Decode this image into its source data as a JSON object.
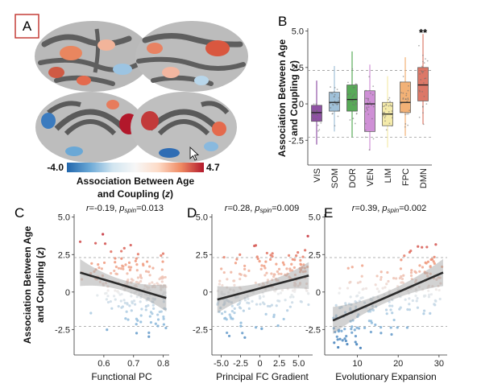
{
  "panel_labels": [
    "A",
    "B",
    "C",
    "D",
    "E"
  ],
  "colorbar": {
    "min_label": "-4.0",
    "max_label": "4.7",
    "label_line1": "Association Between Age",
    "label_line2": "and Coupling (z)",
    "colors": [
      "#2166ac",
      "#6aa8d6",
      "#d1e5f0",
      "#f7f7f7",
      "#fddbc7",
      "#ef8a62",
      "#b2182b"
    ]
  },
  "chart_data": [
    {
      "id": "B",
      "type": "box",
      "ylabel_line1": "Association Between Age",
      "ylabel_line2": "and Coupling (z)",
      "ylim": [
        -4.2,
        5.2
      ],
      "yticks": [
        "5.0",
        "2.5",
        "0",
        "-2.5"
      ],
      "ytick_values": [
        5.0,
        2.5,
        0,
        -2.5
      ],
      "reference_lines": [
        2.3,
        -2.3
      ],
      "categories": [
        "VIS",
        "SOM",
        "DOR",
        "VEN",
        "LIM",
        "FPC",
        "DMN"
      ],
      "colors": [
        "#7b3294",
        "#8fb6d2",
        "#3a9b3a",
        "#c77ccf",
        "#f3e79b",
        "#f0a35e",
        "#d6604d"
      ],
      "q1": [
        -1.2,
        -0.5,
        -0.5,
        -1.9,
        -1.5,
        -0.6,
        0.2
      ],
      "median": [
        -0.6,
        0.1,
        0.3,
        0.0,
        -0.7,
        0.1,
        1.3
      ],
      "q3": [
        -0.1,
        0.8,
        1.3,
        0.9,
        0.1,
        1.5,
        2.5
      ],
      "whisker_low": [
        -2.8,
        -1.9,
        -2.3,
        -3.2,
        -3.0,
        -2.2,
        -1.4
      ],
      "whisker_high": [
        1.6,
        2.6,
        3.6,
        2.7,
        1.9,
        3.2,
        4.8
      ],
      "annotation": "**",
      "annotation_category": "DMN"
    },
    {
      "id": "C",
      "type": "scatter",
      "stat_r": "r=-0.19, ",
      "stat_p_label": "p",
      "stat_p_sub": "spin",
      "stat_p_value": "=0.013",
      "ylabel_line1": "Association Between Age",
      "ylabel_line2": "and Coupling (z)",
      "xlabel": "Functional  PC",
      "xlim": [
        0.5,
        0.82
      ],
      "ylim": [
        -4.2,
        5.2
      ],
      "xticks": [
        "0.6",
        "0.7",
        "0.8"
      ],
      "xtick_values": [
        0.6,
        0.7,
        0.8
      ],
      "yticks": [
        "5.0",
        "2.5",
        "0",
        "-2.5"
      ],
      "ytick_values": [
        5.0,
        2.5,
        0,
        -2.5
      ],
      "reference_lines": [
        2.3,
        -2.3
      ],
      "fit": {
        "x": [
          0.52,
          0.81
        ],
        "y": [
          1.3,
          -0.4
        ]
      },
      "seed": 11,
      "n_points": 230,
      "x_range": [
        0.52,
        0.81
      ],
      "x_skew": 1.6,
      "slope": -5.86,
      "intercept": 4.35
    },
    {
      "id": "D",
      "type": "scatter",
      "stat_r": "r=0.28, ",
      "stat_p_label": "p",
      "stat_p_sub": "spin",
      "stat_p_value": "=0.009",
      "xlabel": "Principal FC Gradient",
      "xlim": [
        -6.2,
        6.8
      ],
      "ylim": [
        -4.2,
        5.2
      ],
      "xticks": [
        "-5.0",
        "-2.5",
        "0",
        "2.5",
        "5.0"
      ],
      "xtick_values": [
        -5.0,
        -2.5,
        0,
        2.5,
        5.0
      ],
      "yticks": [
        "5.0",
        "2.5",
        "0",
        "-2.5"
      ],
      "ytick_values": [
        5.0,
        2.5,
        0,
        -2.5
      ],
      "reference_lines": [
        2.3,
        -2.3
      ],
      "fit": {
        "x": [
          -5.5,
          6.3
        ],
        "y": [
          -0.5,
          1.1
        ]
      },
      "seed": 23,
      "n_points": 230,
      "x_range": [
        -5.5,
        6.3
      ],
      "x_skew": 1.0,
      "slope": 0.136,
      "intercept": 0.25
    },
    {
      "id": "E",
      "type": "scatter",
      "stat_r": "r=0.39, ",
      "stat_p_label": "p",
      "stat_p_sub": "spin",
      "stat_p_value": "=0.002",
      "xlabel": "Evolutionary Expansion",
      "xlim": [
        2,
        32
      ],
      "ylim": [
        -4.2,
        5.2
      ],
      "xticks": [
        "10",
        "20",
        "30"
      ],
      "xtick_values": [
        10,
        20,
        30
      ],
      "yticks": [
        "5.0",
        "2.5",
        "0",
        "-2.5"
      ],
      "ytick_values": [
        5.0,
        2.5,
        0,
        -2.5
      ],
      "reference_lines": [
        2.3,
        -2.3
      ],
      "fit": {
        "x": [
          4,
          31
        ],
        "y": [
          -1.9,
          1.3
        ]
      },
      "seed": 37,
      "n_points": 230,
      "x_range": [
        4,
        31
      ],
      "x_skew": 1.0,
      "slope": 0.1185,
      "intercept": -2.37
    }
  ]
}
